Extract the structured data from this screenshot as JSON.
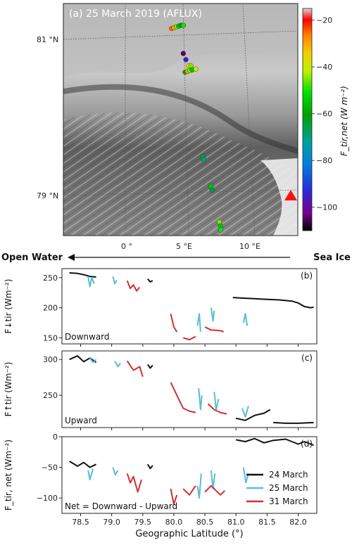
{
  "map": {
    "title": "(a) 25 March 2019 (AFLUX)",
    "lat_labels": [
      "81 °N",
      "79 °N"
    ],
    "lon_labels": [
      "0 °",
      "5 °E",
      "10 °E"
    ],
    "colorbar": {
      "label": "F_tir,net (W m⁻²)",
      "ticks": [
        -20,
        -40,
        -60,
        -80,
        -100
      ],
      "range": [
        -110,
        -15
      ],
      "colormap": "nipy_spectral"
    },
    "flight_points": [
      {
        "lon": 3.9,
        "lat": 81.14,
        "value": -25
      },
      {
        "lon": 4.1,
        "lat": 81.15,
        "value": -30
      },
      {
        "lon": 4.3,
        "lat": 81.16,
        "value": -45
      },
      {
        "lon": 4.5,
        "lat": 81.17,
        "value": -55
      },
      {
        "lon": 4.7,
        "lat": 81.18,
        "value": -60
      },
      {
        "lon": 4.9,
        "lat": 81.18,
        "value": -50
      },
      {
        "lon": 4.8,
        "lat": 80.82,
        "value": -105
      },
      {
        "lon": 5.0,
        "lat": 80.74,
        "value": -95
      },
      {
        "lon": 5.2,
        "lat": 80.66,
        "value": -35
      },
      {
        "lon": 5.4,
        "lat": 80.66,
        "value": -45
      },
      {
        "lon": 4.9,
        "lat": 80.58,
        "value": -60
      },
      {
        "lon": 5.1,
        "lat": 80.59,
        "value": -30
      },
      {
        "lon": 5.3,
        "lat": 80.6,
        "value": -45
      },
      {
        "lon": 5.5,
        "lat": 80.61,
        "value": -55
      },
      {
        "lon": 5.8,
        "lat": 80.62,
        "value": -40
      },
      {
        "lon": 6.1,
        "lat": 79.5,
        "value": -65
      },
      {
        "lon": 6.2,
        "lat": 79.46,
        "value": -70
      },
      {
        "lon": 6.7,
        "lat": 79.12,
        "value": -55
      },
      {
        "lon": 6.8,
        "lat": 79.07,
        "value": -65
      },
      {
        "lon": 7.3,
        "lat": 78.66,
        "value": -45
      },
      {
        "lon": 7.4,
        "lat": 78.61,
        "value": -55
      },
      {
        "lon": 7.4,
        "lat": 78.56,
        "value": -50
      }
    ]
  },
  "direction": {
    "left": "Open Water",
    "right": "Sea Ice"
  },
  "chart_data": [
    {
      "type": "line",
      "panel": "(b)",
      "annotation": "Downward",
      "ylabel": "F↓tir (Wm⁻²)",
      "ylim": [
        140,
        265
      ],
      "yticks": [
        150,
        200,
        250
      ],
      "xlim": [
        78.2,
        82.3
      ],
      "series": [
        {
          "name": "24 March",
          "color": "#111111",
          "segments": [
            [
              [
                78.32,
                258
              ],
              [
                78.45,
                257
              ],
              [
                78.55,
                255
              ],
              [
                78.65,
                252
              ],
              [
                78.75,
                251
              ]
            ],
            [
              [
                79.58,
                248
              ],
              [
                79.62,
                243
              ],
              [
                79.66,
                245
              ]
            ],
            [
              [
                80.95,
                217
              ],
              [
                81.1,
                216
              ],
              [
                81.3,
                215
              ],
              [
                81.5,
                214
              ],
              [
                81.7,
                213
              ],
              [
                81.9,
                211
              ],
              [
                82.0,
                208
              ],
              [
                82.1,
                202
              ],
              [
                82.2,
                200
              ],
              [
                82.25,
                201
              ]
            ]
          ]
        },
        {
          "name": "25 March",
          "color": "#5bbcd6",
          "segments": [
            [
              [
                78.62,
                252
              ],
              [
                78.65,
                235
              ],
              [
                78.68,
                250
              ],
              [
                78.72,
                240
              ]
            ],
            [
              [
                79.02,
                252
              ],
              [
                79.05,
                240
              ],
              [
                79.08,
                246
              ]
            ],
            [
              [
                80.38,
                170
              ],
              [
                80.41,
                190
              ],
              [
                80.43,
                160
              ]
            ],
            [
              [
                80.6,
                200
              ],
              [
                80.63,
                178
              ],
              [
                80.65,
                195
              ]
            ],
            [
              [
                81.12,
                175
              ],
              [
                81.15,
                190
              ],
              [
                81.18,
                170
              ]
            ]
          ]
        },
        {
          "name": "31 March",
          "color": "#d03030",
          "segments": [
            [
              [
                79.25,
                245
              ],
              [
                79.3,
                232
              ],
              [
                79.35,
                238
              ],
              [
                79.4,
                228
              ],
              [
                79.45,
                234
              ]
            ],
            [
              [
                79.95,
                190
              ],
              [
                80.0,
                168
              ],
              [
                80.05,
                160
              ]
            ],
            [
              [
                80.15,
                150
              ],
              [
                80.25,
                147
              ],
              [
                80.35,
                152
              ]
            ],
            [
              [
                80.5,
                168
              ],
              [
                80.6,
                163
              ],
              [
                80.75,
                162
              ],
              [
                80.8,
                160
              ]
            ]
          ]
        }
      ]
    },
    {
      "type": "line",
      "panel": "(c)",
      "annotation": "Upward",
      "ylabel": "F↑tir (Wm⁻²)",
      "ylim": [
        205,
        312
      ],
      "yticks": [
        250,
        300
      ],
      "xlim": [
        78.2,
        82.3
      ],
      "series": [
        {
          "name": "24 March",
          "color": "#111111",
          "segments": [
            [
              [
                78.32,
                300
              ],
              [
                78.45,
                305
              ],
              [
                78.55,
                297
              ],
              [
                78.65,
                302
              ],
              [
                78.75,
                296
              ]
            ],
            [
              [
                79.58,
                293
              ],
              [
                79.62,
                288
              ],
              [
                79.66,
                292
              ]
            ],
            [
              [
                81.0,
                218
              ],
              [
                81.15,
                215
              ],
              [
                81.3,
                222
              ],
              [
                81.45,
                225
              ],
              [
                81.55,
                230
              ]
            ],
            [
              [
                81.6,
                212
              ],
              [
                81.8,
                211
              ],
              [
                82.0,
                211
              ],
              [
                82.25,
                212
              ]
            ]
          ]
        },
        {
          "name": "25 March",
          "color": "#5bbcd6",
          "segments": [
            [
              [
                78.65,
                302
              ],
              [
                78.7,
                296
              ],
              [
                78.75,
                300
              ]
            ],
            [
              [
                79.05,
                298
              ],
              [
                79.1,
                290
              ],
              [
                79.14,
                295
              ]
            ],
            [
              [
                80.4,
                260
              ],
              [
                80.43,
                230
              ],
              [
                80.45,
                250
              ]
            ],
            [
              [
                80.65,
                255
              ],
              [
                80.68,
                230
              ],
              [
                80.72,
                245
              ]
            ],
            [
              [
                81.1,
                232
              ],
              [
                81.15,
                220
              ],
              [
                81.2,
                235
              ]
            ]
          ]
        },
        {
          "name": "31 March",
          "color": "#d03030",
          "segments": [
            [
              [
                79.25,
                298
              ],
              [
                79.35,
                285
              ],
              [
                79.45,
                290
              ],
              [
                79.5,
                276
              ]
            ],
            [
              [
                79.95,
                268
              ],
              [
                80.05,
                250
              ],
              [
                80.15,
                232
              ],
              [
                80.25,
                228
              ],
              [
                80.35,
                226
              ]
            ],
            [
              [
                80.55,
                238
              ],
              [
                80.65,
                230
              ],
              [
                80.75,
                226
              ],
              [
                80.85,
                224
              ]
            ]
          ]
        }
      ]
    },
    {
      "type": "line",
      "panel": "(d)",
      "annotation": "Net = Downward - Upward",
      "ylabel": "F_tir, net (Wm⁻²)",
      "ylim": [
        -125,
        0
      ],
      "yticks": [
        0,
        -50,
        -100
      ],
      "xlim": [
        78.2,
        82.3
      ],
      "xlabel": "Geographic Latitude (°)",
      "xticks": [
        78.5,
        79.0,
        79.5,
        80.0,
        80.5,
        81.0,
        81.5,
        82.0
      ],
      "legend_position": "lower-right",
      "series": [
        {
          "name": "24 March",
          "color": "#111111",
          "segments": [
            [
              [
                78.32,
                -40
              ],
              [
                78.45,
                -48
              ],
              [
                78.55,
                -42
              ],
              [
                78.65,
                -50
              ],
              [
                78.75,
                -45
              ]
            ],
            [
              [
                79.58,
                -45
              ],
              [
                79.62,
                -52
              ],
              [
                79.66,
                -47
              ]
            ],
            [
              [
                81.0,
                -5
              ],
              [
                81.15,
                -8
              ],
              [
                81.3,
                -3
              ],
              [
                81.45,
                -10
              ],
              [
                81.6,
                -6
              ],
              [
                81.8,
                -4
              ],
              [
                82.0,
                -12
              ],
              [
                82.1,
                -8
              ],
              [
                82.25,
                -14
              ]
            ]
          ]
        },
        {
          "name": "25 March",
          "color": "#5bbcd6",
          "segments": [
            [
              [
                78.62,
                -55
              ],
              [
                78.65,
                -70
              ],
              [
                78.7,
                -52
              ]
            ],
            [
              [
                79.02,
                -50
              ],
              [
                79.06,
                -62
              ],
              [
                79.1,
                -55
              ]
            ],
            [
              [
                80.38,
                -80
              ],
              [
                80.41,
                -100
              ],
              [
                80.44,
                -60
              ]
            ],
            [
              [
                80.6,
                -55
              ],
              [
                80.63,
                -85
              ],
              [
                80.66,
                -60
              ]
            ],
            [
              [
                81.12,
                -50
              ],
              [
                81.16,
                -75
              ],
              [
                81.2,
                -60
              ]
            ]
          ]
        },
        {
          "name": "31 March",
          "color": "#d03030",
          "segments": [
            [
              [
                79.25,
                -60
              ],
              [
                79.3,
                -75
              ],
              [
                79.35,
                -65
              ],
              [
                79.42,
                -90
              ],
              [
                79.48,
                -70
              ]
            ],
            [
              [
                79.95,
                -85
              ],
              [
                80.0,
                -110
              ],
              [
                80.05,
                -95
              ]
            ],
            [
              [
                80.15,
                -85
              ],
              [
                80.25,
                -95
              ],
              [
                80.35,
                -80
              ]
            ],
            [
              [
                80.5,
                -90
              ],
              [
                80.6,
                -80
              ],
              [
                80.75,
                -95
              ],
              [
                80.82,
                -88
              ]
            ]
          ]
        }
      ]
    }
  ]
}
